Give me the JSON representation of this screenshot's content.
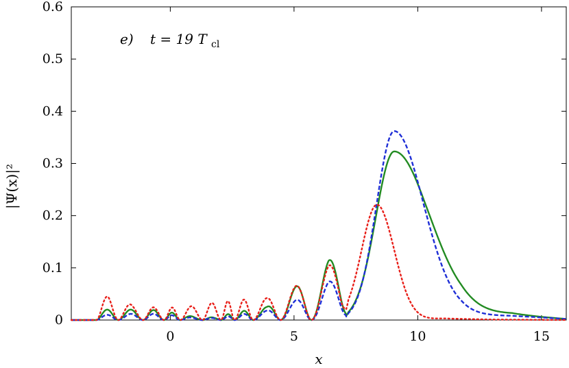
{
  "chart_data": {
    "type": "line",
    "title": "",
    "xlabel": "x",
    "ylabel": "|Ψ(x)|²",
    "xlim": [
      -4,
      16
    ],
    "ylim": [
      0,
      0.6
    ],
    "x_ticks": [
      0,
      5,
      10,
      15
    ],
    "x_tick_labels": [
      "0",
      "5",
      "10",
      "15"
    ],
    "y_ticks": [
      0,
      0.1,
      0.2,
      0.3,
      0.4,
      0.5,
      0.6
    ],
    "y_tick_labels": [
      "0",
      "0.1",
      "0.2",
      "0.3",
      "0.4",
      "0.5",
      "0.6"
    ],
    "grid": false,
    "legend": "none",
    "annotation": {
      "label": "e)",
      "text": "t = 19 T",
      "subscript": "cl",
      "x": 0.5,
      "y": 0.53
    },
    "series": [
      {
        "color": "#228b22",
        "style": "solid",
        "fringe_amps": [
          [
            -2.5,
            0.02
          ],
          [
            -1.5,
            0.02
          ],
          [
            -0.6,
            0.019
          ],
          [
            0.1,
            0.014
          ],
          [
            1.0,
            0.006
          ],
          [
            1.8,
            0.005
          ],
          [
            2.2,
            0.01
          ],
          [
            2.9,
            0.017
          ],
          [
            3.9,
            0.025
          ],
          [
            5.0,
            0.061
          ],
          [
            6.4,
            0.115
          ]
        ],
        "peak": {
          "center": 9.05,
          "sigma_left": 0.75,
          "sigma_right": 1.45,
          "height": 0.323
        },
        "tail": [
          [
            12.5,
            0.011
          ],
          [
            13.8,
            0.012
          ],
          [
            15.0,
            0.006
          ],
          [
            16.0,
            0.002
          ]
        ]
      },
      {
        "color": "#1f2fd6",
        "style": "dashed",
        "fringe_amps": [
          [
            -2.5,
            0.01
          ],
          [
            -1.5,
            0.012
          ],
          [
            -0.6,
            0.012
          ],
          [
            0.1,
            0.009
          ],
          [
            1.0,
            0.004
          ],
          [
            1.8,
            0.004
          ],
          [
            2.2,
            0.006
          ],
          [
            2.9,
            0.011
          ],
          [
            3.9,
            0.018
          ],
          [
            5.0,
            0.036
          ],
          [
            6.4,
            0.074
          ]
        ],
        "peak": {
          "center": 9.05,
          "sigma_left": 0.72,
          "sigma_right": 1.2,
          "height": 0.362
        },
        "tail": [
          [
            12.5,
            0.009
          ],
          [
            13.8,
            0.008
          ],
          [
            15.0,
            0.005
          ],
          [
            16.0,
            0.002
          ]
        ]
      },
      {
        "color": "#e8201a",
        "style": "dotted",
        "fringe_amps": [
          [
            -2.5,
            0.045
          ],
          [
            -1.5,
            0.028
          ],
          [
            -0.6,
            0.024
          ],
          [
            0.1,
            0.024
          ],
          [
            1.0,
            0.027
          ],
          [
            1.8,
            0.034
          ],
          [
            2.9,
            0.039
          ],
          [
            3.9,
            0.042
          ],
          [
            5.0,
            0.063
          ],
          [
            6.4,
            0.105
          ]
        ],
        "peak": {
          "center": 8.35,
          "sigma_left": 0.62,
          "sigma_right": 0.7,
          "height": 0.221
        },
        "tail": [
          [
            11.0,
            0.003
          ],
          [
            13.0,
            0.001
          ],
          [
            16.0,
            0.0
          ]
        ]
      }
    ]
  }
}
